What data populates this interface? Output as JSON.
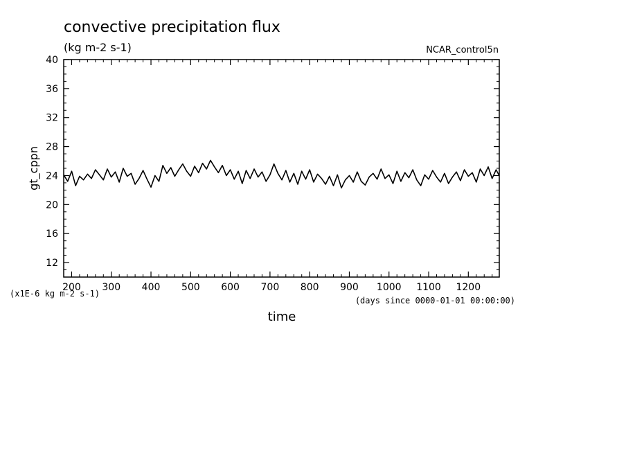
{
  "chart_data": {
    "type": "line",
    "title": "convective precipitation flux",
    "subtitle": "(kg m-2 s-1)",
    "dataset_label": "NCAR_control5n",
    "ylabel": "gt_cppn",
    "xlabel": "time",
    "y_scale_note": "(x1E-6 kg m-2 s-1)",
    "x_units_note": "(days since 0000-01-01 00:00:00)",
    "xlim": [
      180,
      1278
    ],
    "ylim": [
      10,
      40
    ],
    "x_ticks": [
      200,
      300,
      400,
      500,
      600,
      700,
      800,
      900,
      1000,
      1100,
      1200
    ],
    "y_ticks": [
      12,
      16,
      20,
      24,
      28,
      32,
      36,
      40
    ],
    "grid": false,
    "series": [
      {
        "color": "#000000",
        "x": [
          180,
          190,
          200,
          210,
          220,
          230,
          240,
          250,
          260,
          270,
          280,
          290,
          300,
          310,
          320,
          330,
          340,
          350,
          360,
          370,
          380,
          390,
          400,
          410,
          420,
          430,
          440,
          450,
          460,
          470,
          480,
          490,
          500,
          510,
          520,
          530,
          540,
          550,
          560,
          570,
          580,
          590,
          600,
          610,
          620,
          630,
          640,
          650,
          660,
          670,
          680,
          690,
          700,
          710,
          720,
          730,
          740,
          750,
          760,
          770,
          780,
          790,
          800,
          810,
          820,
          830,
          840,
          850,
          860,
          870,
          880,
          890,
          900,
          910,
          920,
          930,
          940,
          950,
          960,
          970,
          980,
          990,
          1000,
          1010,
          1020,
          1030,
          1040,
          1050,
          1060,
          1070,
          1080,
          1090,
          1100,
          1110,
          1120,
          1130,
          1140,
          1150,
          1160,
          1170,
          1180,
          1190,
          1200,
          1210,
          1220,
          1230,
          1240,
          1250,
          1260,
          1270,
          1278
        ],
        "y": [
          24.1,
          23.2,
          24.6,
          22.6,
          23.9,
          23.4,
          24.2,
          23.6,
          24.8,
          24.1,
          23.4,
          24.9,
          23.8,
          24.5,
          23.1,
          25.0,
          23.9,
          24.3,
          22.8,
          23.6,
          24.7,
          23.5,
          22.4,
          24.0,
          23.2,
          25.4,
          24.3,
          25.1,
          23.9,
          24.8,
          25.6,
          24.6,
          23.9,
          25.3,
          24.4,
          25.7,
          24.9,
          26.1,
          25.2,
          24.4,
          25.4,
          24.0,
          24.8,
          23.5,
          24.6,
          22.9,
          24.7,
          23.6,
          24.9,
          23.8,
          24.5,
          23.2,
          24.1,
          25.6,
          24.3,
          23.4,
          24.7,
          23.1,
          24.3,
          22.8,
          24.6,
          23.5,
          24.8,
          23.1,
          24.2,
          23.6,
          22.8,
          23.9,
          22.6,
          24.1,
          22.3,
          23.4,
          24.0,
          23.1,
          24.5,
          23.2,
          22.7,
          23.8,
          24.3,
          23.5,
          24.9,
          23.6,
          24.1,
          22.9,
          24.6,
          23.2,
          24.4,
          23.7,
          24.8,
          23.4,
          22.6,
          24.1,
          23.5,
          24.7,
          23.8,
          23.1,
          24.3,
          22.9,
          23.8,
          24.5,
          23.3,
          24.8,
          23.9,
          24.4,
          23.1,
          24.9,
          24.0,
          25.2,
          23.6,
          24.8,
          24.0
        ]
      }
    ]
  }
}
